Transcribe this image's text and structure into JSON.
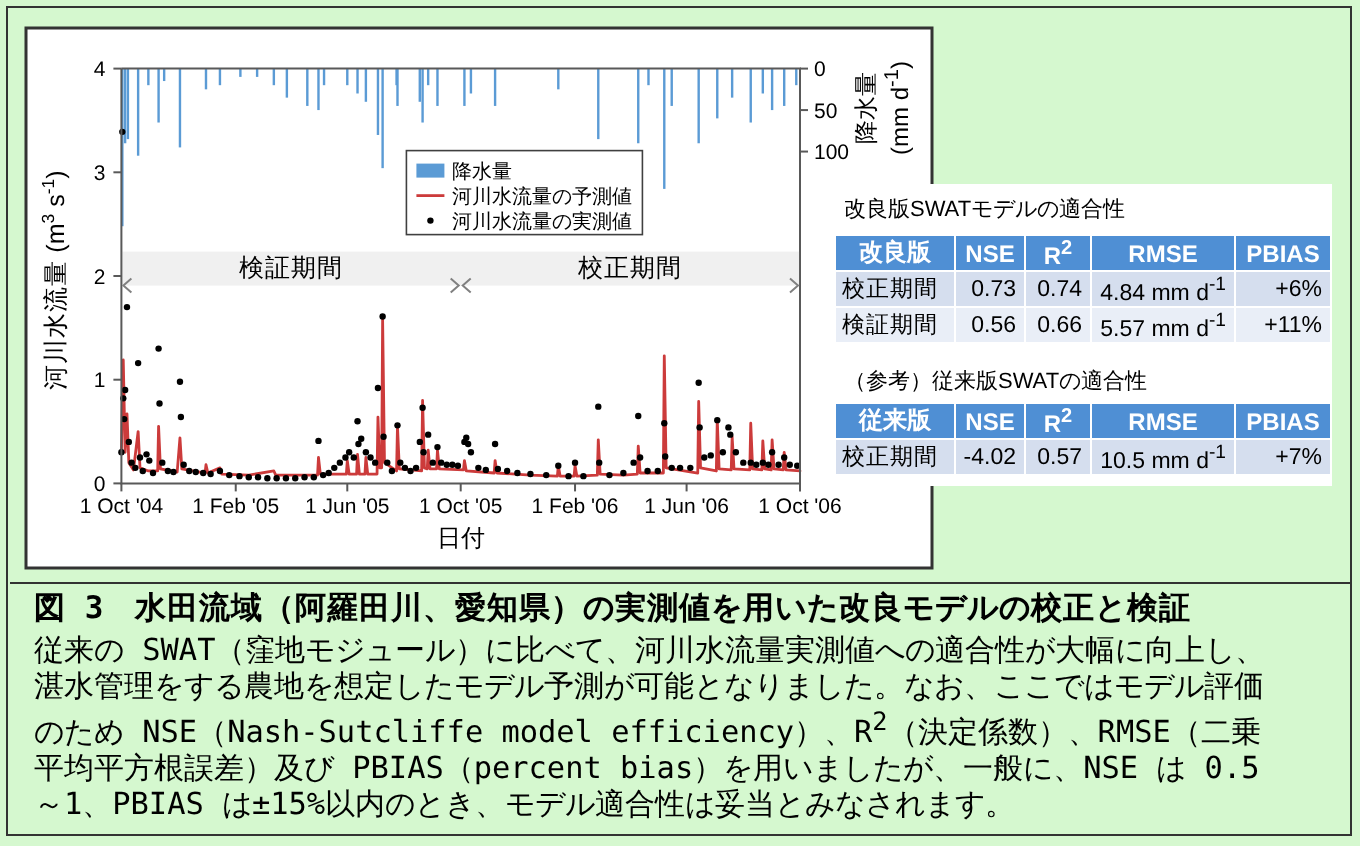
{
  "chart_data": [
    {
      "type": "line",
      "xlabel": "日付",
      "ylabel": "河川水流量 (m$^{3}$ s$^{-1}$)",
      "y2label": "降水量 (mm d$^{-1}$)",
      "xlim": [
        "2004-10-01",
        "2006-10-01"
      ],
      "xticks": [
        {
          "value": "2004-10-01",
          "label": "1 Oct '04"
        },
        {
          "value": "2005-02-01",
          "label": "1 Feb '05"
        },
        {
          "value": "2005-06-01",
          "label": "1 Jun '05"
        },
        {
          "value": "2005-10-01",
          "label": "1 Oct '05"
        },
        {
          "value": "2006-02-01",
          "label": "1 Feb '06"
        },
        {
          "value": "2006-06-01",
          "label": "1 Jun '06"
        },
        {
          "value": "2006-10-01",
          "label": "1 Oct '06"
        }
      ],
      "ylim": [
        0,
        4
      ],
      "yticks": [
        0,
        1,
        2,
        3,
        4
      ],
      "y2lim": [
        500,
        0
      ],
      "y2ticks": [
        0,
        50,
        100
      ],
      "legend": "top",
      "bands": [
        {
          "axis": "x",
          "from": "2004-10-01",
          "to": "2005-10-01",
          "label": "検証期間",
          "color": "#808080"
        },
        {
          "axis": "x",
          "from": "2005-10-01",
          "to": "2006-10-01",
          "label": "校正期間",
          "color": "#808080"
        }
      ],
      "series": [
        {
          "name": "降水量",
          "type": "bar",
          "axis": "y2",
          "color": "#5b9bd5",
          "x": [
            "2004-10-02",
            "2004-10-05",
            "2004-10-08",
            "2004-10-19",
            "2004-10-30",
            "2004-11-10",
            "2004-11-16",
            "2004-12-03",
            "2004-12-31",
            "2005-01-15",
            "2005-02-06",
            "2005-02-24",
            "2005-03-14",
            "2005-03-28",
            "2005-04-19",
            "2005-05-01",
            "2005-05-07",
            "2005-06-01",
            "2005-06-12",
            "2005-06-21",
            "2005-07-04",
            "2005-07-09",
            "2005-07-24",
            "2005-07-25",
            "2005-08-18",
            "2005-08-21",
            "2005-08-27",
            "2005-09-06",
            "2005-10-05",
            "2005-10-12",
            "2005-11-07",
            "2006-01-14",
            "2006-02-26",
            "2006-04-10",
            "2006-04-21",
            "2006-05-08",
            "2006-05-16",
            "2006-06-14",
            "2006-07-04",
            "2006-07-20",
            "2006-08-09",
            "2006-08-22",
            "2006-09-01",
            "2006-09-14",
            "2006-09-27"
          ],
          "values": [
            190,
            90,
            85,
            105,
            20,
            65,
            15,
            95,
            25,
            20,
            10,
            10,
            20,
            35,
            45,
            50,
            20,
            20,
            30,
            40,
            80,
            120,
            20,
            45,
            40,
            65,
            20,
            45,
            45,
            30,
            45,
            25,
            85,
            90,
            20,
            145,
            45,
            90,
            60,
            35,
            65,
            30,
            50,
            45,
            20
          ]
        },
        {
          "name": "河川水流量の予測値",
          "type": "line",
          "color": "#cc3b3b",
          "x": [
            "2004-10-01",
            "2004-10-03",
            "2004-10-05",
            "2004-10-07",
            "2004-10-09",
            "2004-10-14",
            "2004-10-19",
            "2004-10-21",
            "2004-10-30",
            "2004-11-09",
            "2004-11-10",
            "2004-11-12",
            "2004-11-30",
            "2004-12-03",
            "2004-12-05",
            "2004-12-30",
            "2004-12-31",
            "2005-01-02",
            "2005-01-15",
            "2005-01-17",
            "2005-02-15",
            "2005-03-14",
            "2005-03-16",
            "2005-04-19",
            "2005-04-30",
            "2005-05-01",
            "2005-05-03",
            "2005-05-31",
            "2005-06-01",
            "2005-06-03",
            "2005-06-11",
            "2005-06-12",
            "2005-06-14",
            "2005-06-20",
            "2005-06-21",
            "2005-06-23",
            "2005-07-03",
            "2005-07-04",
            "2005-07-06",
            "2005-07-08",
            "2005-07-09",
            "2005-07-11",
            "2005-07-24",
            "2005-07-25",
            "2005-07-27",
            "2005-08-20",
            "2005-08-21",
            "2005-08-23",
            "2005-08-26",
            "2005-08-27",
            "2005-08-29",
            "2005-09-05",
            "2005-09-06",
            "2005-09-08",
            "2005-10-04",
            "2005-10-05",
            "2005-10-07",
            "2005-11-06",
            "2005-11-07",
            "2005-11-09",
            "2005-12-15",
            "2006-01-13",
            "2006-01-14",
            "2006-01-16",
            "2006-01-31",
            "2006-02-01",
            "2006-02-03",
            "2006-02-25",
            "2006-02-26",
            "2006-02-28",
            "2006-03-25",
            "2006-04-09",
            "2006-04-10",
            "2006-04-12",
            "2006-05-07",
            "2006-05-08",
            "2006-05-10",
            "2006-06-13",
            "2006-06-14",
            "2006-06-16",
            "2006-07-03",
            "2006-07-04",
            "2006-07-06",
            "2006-07-19",
            "2006-07-20",
            "2006-07-22",
            "2006-08-08",
            "2006-08-09",
            "2006-08-11",
            "2006-08-21",
            "2006-08-22",
            "2006-08-24",
            "2006-08-31",
            "2006-09-01",
            "2006-09-03",
            "2006-09-13",
            "2006-09-14",
            "2006-09-16",
            "2006-10-01"
          ],
          "values": [
            0.3,
            1.19,
            0.3,
            0.67,
            0.2,
            0.13,
            0.5,
            0.15,
            0.12,
            0.12,
            0.55,
            0.14,
            0.11,
            0.44,
            0.14,
            0.1,
            0.18,
            0.1,
            0.15,
            0.09,
            0.08,
            0.12,
            0.08,
            0.08,
            0.08,
            0.25,
            0.09,
            0.09,
            0.22,
            0.09,
            0.09,
            0.28,
            0.09,
            0.09,
            0.25,
            0.09,
            0.09,
            0.64,
            0.15,
            0.15,
            1.58,
            0.2,
            0.12,
            0.55,
            0.14,
            0.12,
            0.8,
            0.15,
            0.14,
            0.32,
            0.14,
            0.14,
            0.32,
            0.14,
            0.13,
            0.22,
            0.12,
            0.1,
            0.22,
            0.1,
            0.08,
            0.07,
            0.17,
            0.07,
            0.07,
            0.17,
            0.07,
            0.08,
            0.42,
            0.09,
            0.08,
            0.09,
            0.36,
            0.1,
            0.1,
            1.23,
            0.15,
            0.1,
            0.79,
            0.15,
            0.12,
            0.61,
            0.14,
            0.13,
            0.45,
            0.14,
            0.13,
            0.58,
            0.14,
            0.13,
            0.41,
            0.14,
            0.13,
            0.42,
            0.14,
            0.13,
            0.3,
            0.13,
            0.12
          ]
        },
        {
          "name": "河川水流量の実測値",
          "type": "scatter",
          "color": "#000000",
          "marker": "circle",
          "x": [
            "2004-10-01",
            "2004-10-02",
            "2004-10-03",
            "2004-10-04",
            "2004-10-05",
            "2004-10-07",
            "2004-10-09",
            "2004-10-12",
            "2004-10-16",
            "2004-10-19",
            "2004-10-21",
            "2004-10-24",
            "2004-10-28",
            "2004-10-31",
            "2004-11-04",
            "2004-11-10",
            "2004-11-11",
            "2004-11-14",
            "2004-11-20",
            "2004-11-26",
            "2004-12-03",
            "2004-12-04",
            "2004-12-07",
            "2004-12-13",
            "2004-12-20",
            "2004-12-28",
            "2005-01-05",
            "2005-01-15",
            "2005-01-25",
            "2005-02-05",
            "2005-02-15",
            "2005-02-25",
            "2005-03-07",
            "2005-03-17",
            "2005-03-27",
            "2005-04-06",
            "2005-04-16",
            "2005-04-26",
            "2005-05-01",
            "2005-05-06",
            "2005-05-12",
            "2005-05-18",
            "2005-05-24",
            "2005-05-30",
            "2005-06-03",
            "2005-06-08",
            "2005-06-12",
            "2005-06-13",
            "2005-06-16",
            "2005-06-21",
            "2005-06-26",
            "2005-07-01",
            "2005-07-04",
            "2005-07-09",
            "2005-07-10",
            "2005-07-14",
            "2005-07-19",
            "2005-07-25",
            "2005-07-28",
            "2005-08-02",
            "2005-08-08",
            "2005-08-14",
            "2005-08-18",
            "2005-08-21",
            "2005-08-22",
            "2005-08-27",
            "2005-09-01",
            "2005-09-06",
            "2005-09-10",
            "2005-09-16",
            "2005-09-22",
            "2005-09-28",
            "2005-10-05",
            "2005-10-07",
            "2005-10-09",
            "2005-10-12",
            "2005-10-20",
            "2005-10-28",
            "2005-11-07",
            "2005-11-10",
            "2005-11-20",
            "2005-12-01",
            "2005-12-15",
            "2006-01-01",
            "2006-01-14",
            "2006-01-25",
            "2006-02-01",
            "2006-02-10",
            "2006-02-26",
            "2006-02-27",
            "2006-03-10",
            "2006-03-25",
            "2006-04-05",
            "2006-04-10",
            "2006-04-12",
            "2006-04-20",
            "2006-05-01",
            "2006-05-08",
            "2006-05-09",
            "2006-05-16",
            "2006-05-25",
            "2006-06-05",
            "2006-06-14",
            "2006-06-15",
            "2006-06-20",
            "2006-06-27",
            "2006-07-04",
            "2006-07-10",
            "2006-07-16",
            "2006-07-18",
            "2006-07-24",
            "2006-08-01",
            "2006-08-09",
            "2006-08-15",
            "2006-08-22",
            "2006-08-28",
            "2006-09-01",
            "2006-09-08",
            "2006-09-14",
            "2006-09-20",
            "2006-09-28"
          ],
          "values": [
            0.3,
            3.39,
            0.82,
            0.62,
            0.9,
            1.7,
            0.4,
            0.2,
            0.15,
            1.16,
            0.25,
            0.12,
            0.28,
            0.22,
            0.1,
            1.3,
            0.77,
            0.2,
            0.12,
            0.11,
            0.98,
            0.64,
            0.18,
            0.12,
            0.11,
            0.1,
            0.09,
            0.12,
            0.08,
            0.07,
            0.06,
            0.06,
            0.05,
            0.05,
            0.05,
            0.05,
            0.06,
            0.06,
            0.41,
            0.08,
            0.1,
            0.15,
            0.2,
            0.25,
            0.3,
            0.25,
            0.6,
            0.38,
            0.43,
            0.3,
            0.25,
            0.2,
            0.92,
            1.61,
            0.45,
            0.2,
            0.12,
            0.56,
            0.2,
            0.15,
            0.12,
            0.15,
            0.4,
            0.73,
            0.3,
            0.47,
            0.2,
            0.35,
            0.2,
            0.18,
            0.18,
            0.17,
            0.4,
            0.44,
            0.38,
            0.3,
            0.15,
            0.13,
            0.38,
            0.14,
            0.12,
            0.1,
            0.09,
            0.08,
            0.17,
            0.07,
            0.2,
            0.07,
            0.74,
            0.2,
            0.08,
            0.1,
            0.2,
            0.65,
            0.25,
            0.12,
            0.12,
            0.58,
            0.26,
            0.15,
            0.15,
            0.15,
            0.97,
            0.54,
            0.25,
            0.27,
            0.61,
            0.3,
            0.54,
            0.47,
            0.3,
            0.2,
            0.2,
            0.18,
            0.2,
            0.18,
            0.3,
            0.18,
            0.25,
            0.18,
            0.17
          ]
        }
      ]
    },
    {
      "type": "other",
      "title": "改良版SWATモデルの適合性",
      "ylabel": "改良版",
      "categories": [
        "NSE",
        "R$^{2}$",
        "RMSE",
        "PBIAS"
      ],
      "y_categories": [
        "校正期間",
        "検証期間"
      ],
      "cell_labels": [
        [
          "0.73",
          "0.74",
          "4.84 mm d$^{-1}$",
          "+6%"
        ],
        [
          "0.56",
          "0.66",
          "5.57 mm d$^{-1}$",
          "+11%"
        ]
      ]
    },
    {
      "type": "other",
      "title": "（参考）従来版SWATの適合性",
      "ylabel": "従来版",
      "categories": [
        "NSE",
        "R$^{2}$",
        "RMSE",
        "PBIAS"
      ],
      "y_categories": [
        "校正期間"
      ],
      "cell_labels": [
        [
          "-4.02",
          "0.57",
          "10.5 mm d$^{-1}$",
          "+7%"
        ]
      ]
    },
    {
      "type": "other",
      "title": "図 3　水田流域（阿羅田川、愛知県）の実測値を用いた改良モデルの校正と検証",
      "annotations": [
        "従来の SWAT（窪地モジュール）に比べて、河川水流量実測値への適合性が大幅に向上し、湛水管理をする農地を想定したモデル予測が可能となりました。なお、ここではモデル評価のため NSE（Nash-Sutcliffe model efficiency）、R$^{2}$（決定係数）、RMSE（二乗平均平方根誤差）及び PBIAS（percent bias）を用いましたが、一般に、NSE は 0.5～1、PBIAS は±15%以内のとき、モデル適合性は妥当とみなされます。"
      ]
    }
  ]
}
